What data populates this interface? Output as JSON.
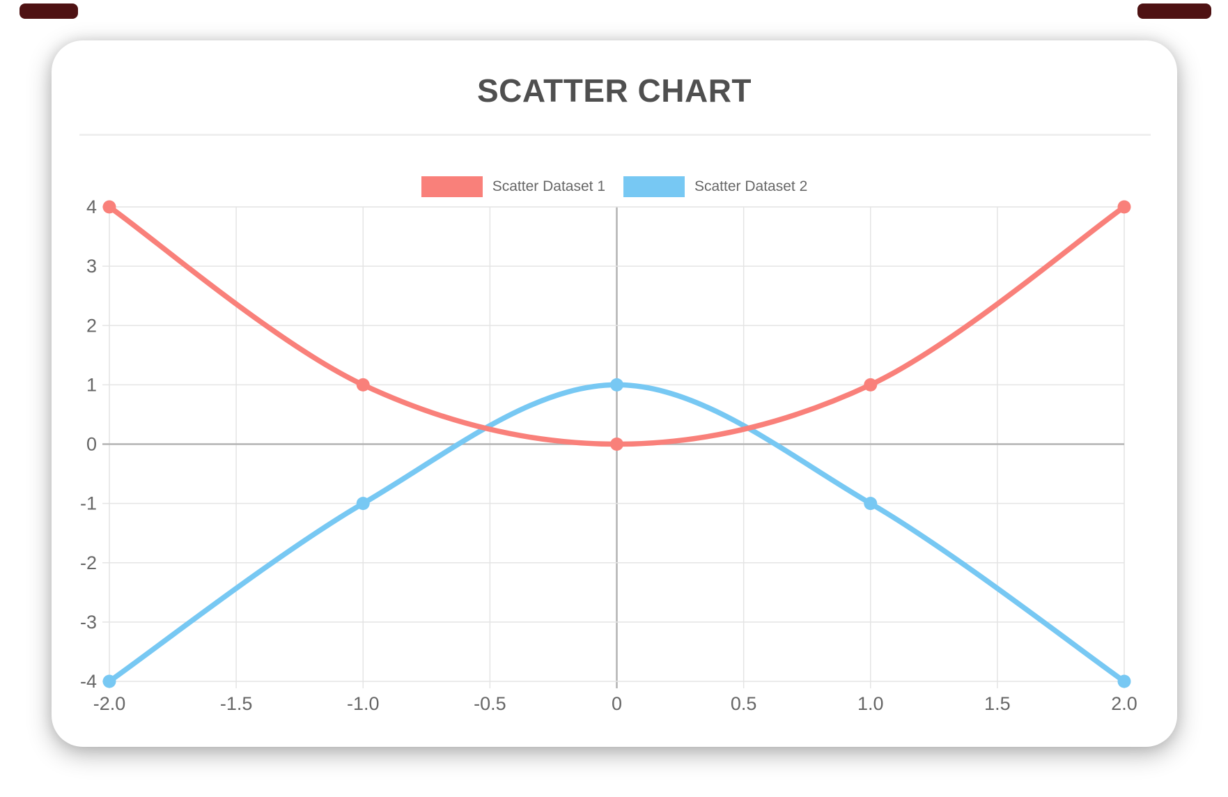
{
  "browser_chrome": {
    "fragment_color": "#4e1213"
  },
  "header": {
    "title": "SCATTER CHART"
  },
  "colors": {
    "grid_line": "#e4e4e4",
    "zero_line": "#b3b3b3",
    "tick_label": "#666666",
    "title_text": "#4f4f4f",
    "series1": "#f9807a",
    "series2": "#77c8f3"
  },
  "chart_data": {
    "type": "scatter",
    "title": "SCATTER CHART",
    "xlabel": "",
    "ylabel": "",
    "xlim": [
      -2,
      2
    ],
    "ylim": [
      -4,
      4
    ],
    "grid": true,
    "legend_position": "top",
    "x_ticks": [
      "-2.0",
      "-1.5",
      "-1.0",
      "-0.5",
      "0",
      "0.5",
      "1.0",
      "1.5",
      "2.0"
    ],
    "x_tick_values": [
      -2,
      -1.5,
      -1,
      -0.5,
      0,
      0.5,
      1,
      1.5,
      2
    ],
    "y_ticks": [
      "4",
      "3",
      "2",
      "1",
      "0",
      "-1",
      "-2",
      "-3",
      "-4"
    ],
    "y_tick_values": [
      4,
      3,
      2,
      1,
      0,
      -1,
      -2,
      -3,
      -4
    ],
    "series": [
      {
        "name": "Scatter Dataset 1",
        "color": "#f9807a",
        "points": [
          [
            -2,
            4
          ],
          [
            -1,
            1
          ],
          [
            0,
            0
          ],
          [
            1,
            1
          ],
          [
            2,
            4
          ]
        ]
      },
      {
        "name": "Scatter Dataset 2",
        "color": "#77c8f3",
        "points": [
          [
            -2,
            -4
          ],
          [
            -1,
            -1
          ],
          [
            0,
            1
          ],
          [
            1,
            -1
          ],
          [
            2,
            -4
          ]
        ]
      }
    ]
  }
}
